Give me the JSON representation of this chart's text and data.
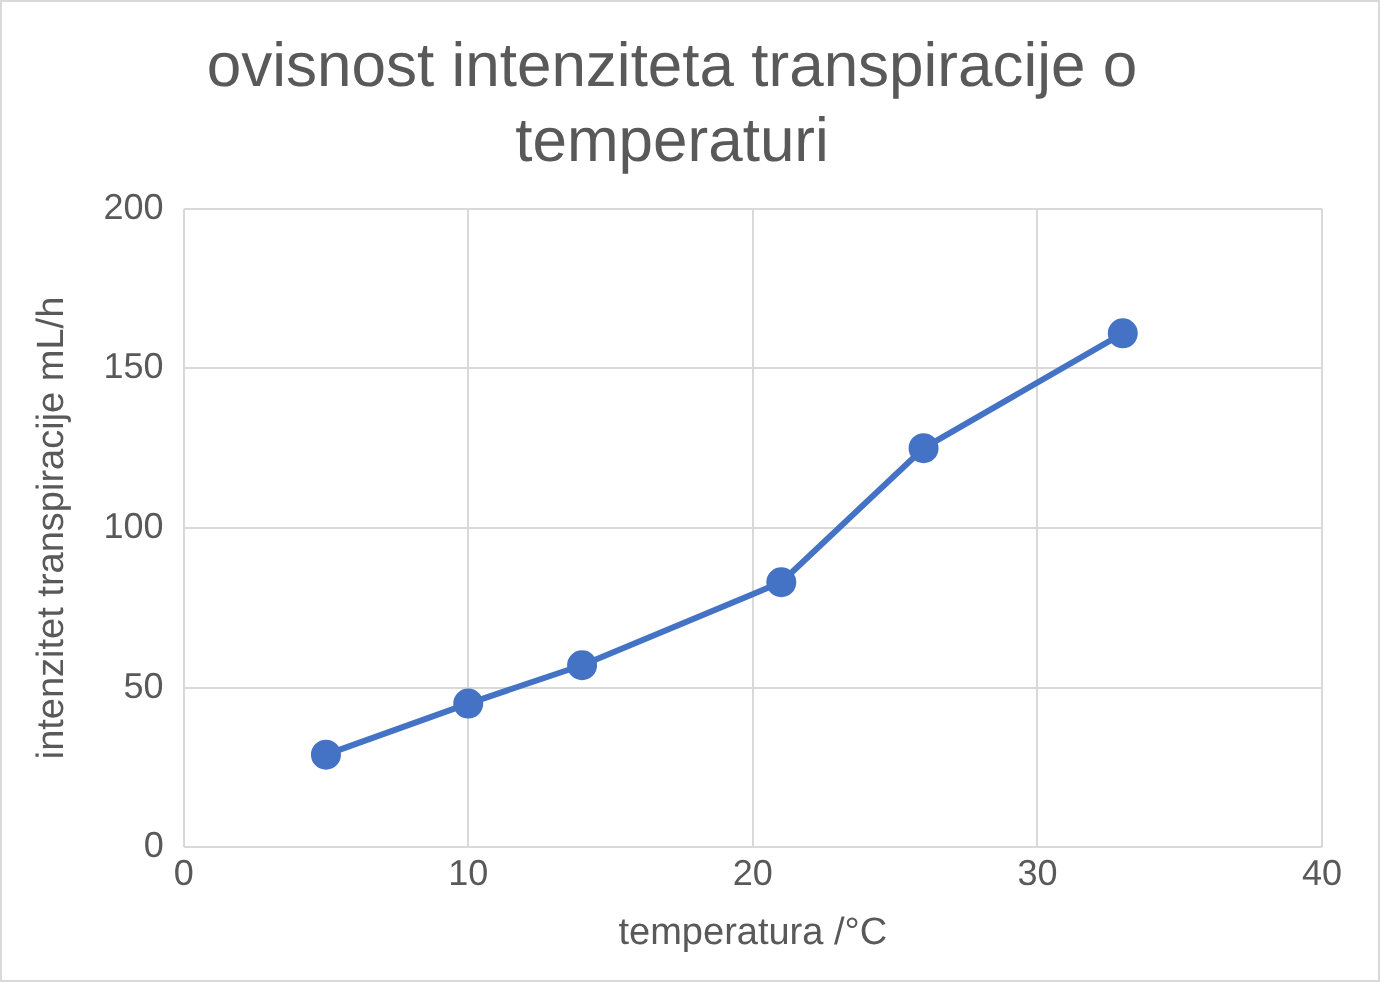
{
  "chart_data": {
    "type": "line",
    "title": "ovisnost intenziteta transpiracije o temperaturi",
    "xlabel": "temperatura /°C",
    "ylabel": "intenzitet transpiracije mL/h",
    "x": [
      5,
      10,
      14,
      21,
      26,
      33
    ],
    "series": [
      {
        "color": "#4472c4",
        "values": [
          29,
          45,
          57,
          83,
          125,
          161
        ]
      }
    ],
    "xlim": [
      0,
      40
    ],
    "xticks": [
      0,
      10,
      20,
      30,
      40
    ],
    "ylim": [
      0,
      200
    ],
    "yticks": [
      0,
      50,
      100,
      150,
      200
    ],
    "grid": true,
    "legend": false,
    "marker": "circle",
    "line_style": "solid"
  }
}
